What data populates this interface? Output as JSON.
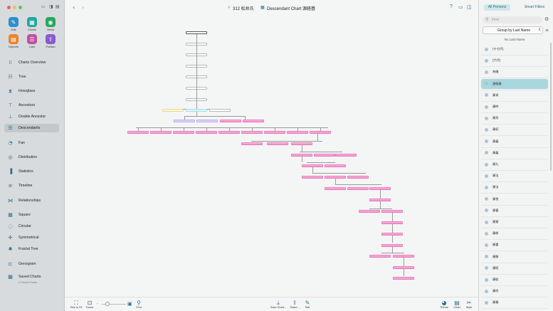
{
  "window": {
    "breadcrumb": "312 松井氏",
    "chart_title": "Descendant Chart 源経基"
  },
  "traffic_colors": [
    "#ec5f57",
    "#f4bd4f",
    "#5fc454"
  ],
  "toolbar": [
    {
      "label": "Edit",
      "icon": "pencil-icon",
      "color": "#2c8fd0"
    },
    {
      "label": "Charts",
      "icon": "charts-icon",
      "color": "#23a7a0"
    },
    {
      "label": "Views",
      "icon": "eye-icon",
      "color": "#26a85a"
    },
    {
      "label": "Reports",
      "icon": "reports-icon",
      "color": "#e8852b"
    },
    {
      "label": "Lists",
      "icon": "list-icon",
      "color": "#c04fa0"
    },
    {
      "label": "Publish",
      "icon": "publish-icon",
      "color": "#8a5bd0"
    }
  ],
  "nav": [
    {
      "label": "Charts Overview",
      "icon": "grid-icon"
    },
    {
      "label": "Tree",
      "icon": "tree-icon"
    },
    {
      "label": "Hourglass",
      "icon": "hourglass-icon"
    },
    {
      "label": "Ancestors",
      "icon": "ancestors-icon"
    },
    {
      "label": "Double Ancestor",
      "icon": "double-ancestor-icon"
    },
    {
      "label": "Descendants",
      "icon": "descendants-icon"
    },
    {
      "label": "Fan",
      "icon": "fan-icon"
    },
    {
      "label": "Distribution",
      "icon": "distribution-icon"
    },
    {
      "label": "Statistics",
      "icon": "statistics-icon"
    },
    {
      "label": "Timeline",
      "icon": "timeline-icon"
    },
    {
      "label": "Relationships",
      "icon": "relationships-icon"
    },
    {
      "label": "Square",
      "icon": "square-icon"
    },
    {
      "label": "Circular",
      "icon": "circular-icon"
    },
    {
      "label": "Symmetrical",
      "icon": "symmetrical-icon"
    },
    {
      "label": "Fractal Tree",
      "icon": "fractal-icon"
    },
    {
      "label": "Genogram",
      "icon": "genogram-icon"
    },
    {
      "label": "Saved Charts",
      "icon": "saved-charts-icon",
      "sub": "0 Saved Charts"
    }
  ],
  "selected_nav": "Descendants",
  "bottom": {
    "fit": "Size to Fit",
    "focus": "Focus",
    "find": "Find",
    "save": "Save Chart...",
    "share": "Share...",
    "edit": "Edit",
    "theme": "Theme",
    "chart": "Chart",
    "style": "Style"
  },
  "right_panel": {
    "tabs": [
      "All Persons",
      "Smart Filters"
    ],
    "search_placeholder": "Find",
    "group": "Group by Last Name",
    "section": "No Last Name",
    "persons": [
      "(十七代)",
      "(六代)",
      "為継",
      "源経基",
      "康貞",
      "康時",
      "康秀",
      "康紀",
      "康義",
      "康義",
      "康久",
      "康法",
      "康法",
      "康悦",
      "康督",
      "康實",
      "康郎",
      "康重",
      "康勝",
      "康昭",
      "康聡",
      "康尚",
      "康春"
    ],
    "selected": "源経基"
  }
}
